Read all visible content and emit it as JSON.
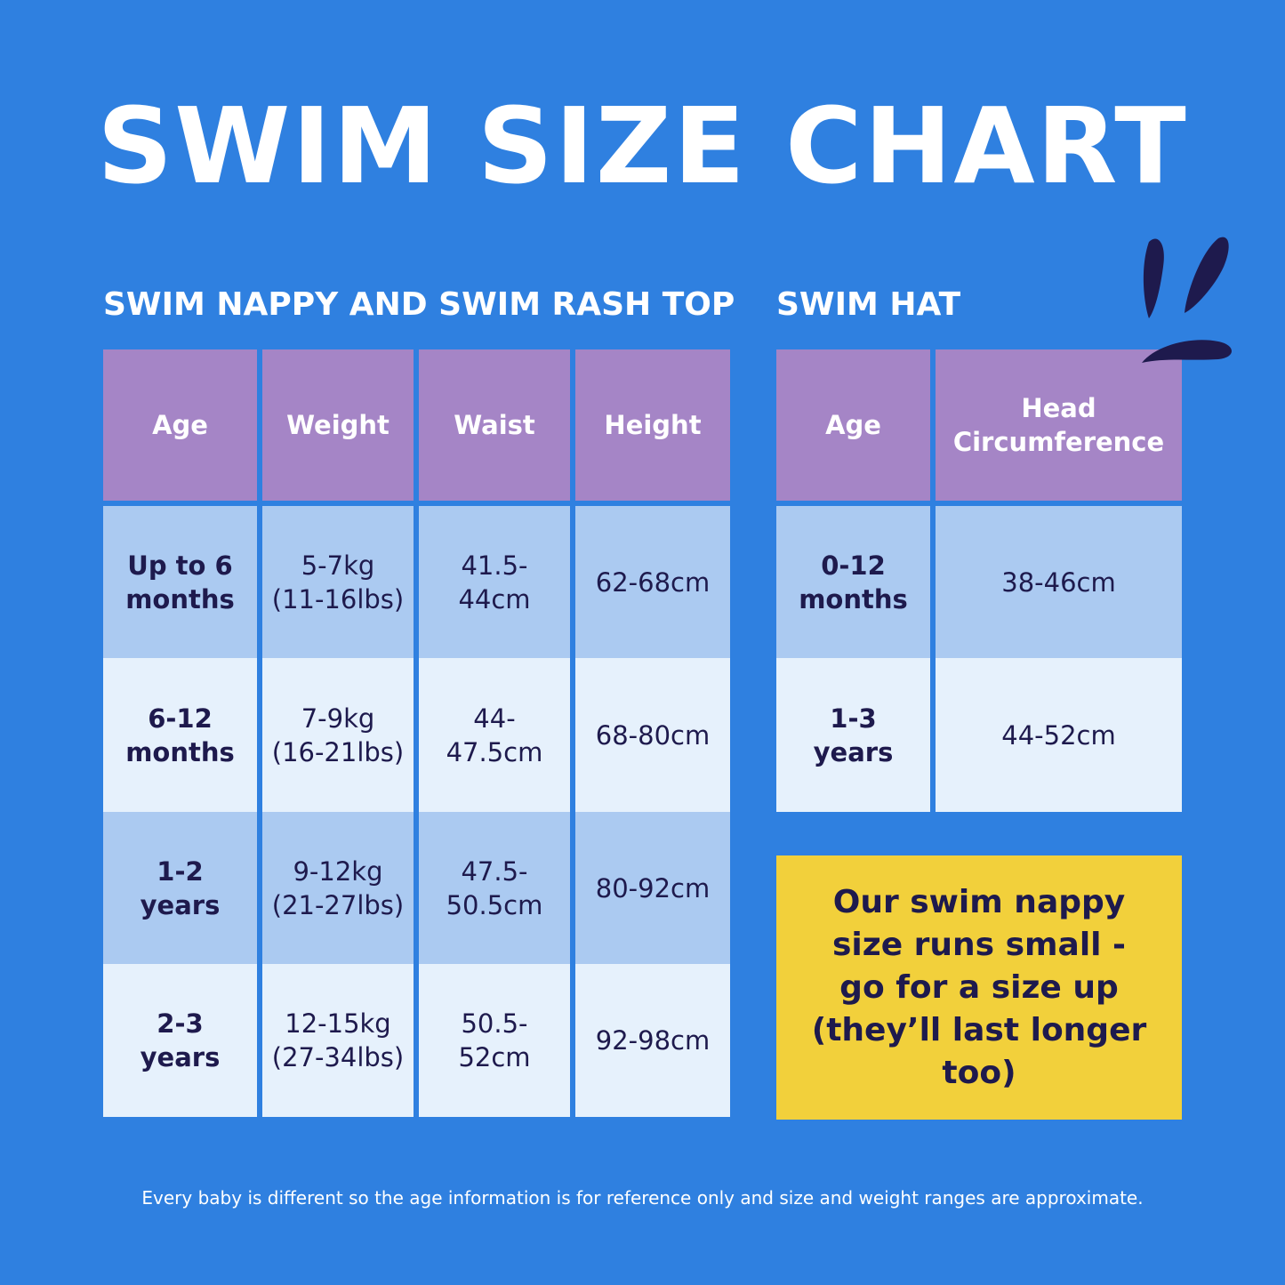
{
  "header": {
    "title": "SWIM SIZE CHART"
  },
  "tables": [
    {
      "title": "SWIM NAPPY AND SWIM RASH TOP",
      "columns": [
        "Age",
        "Weight",
        "Waist",
        "Height"
      ],
      "rows": [
        [
          "Up to 6\nmonths",
          "5-7kg\n(11-16lbs)",
          "41.5-\n44cm",
          "62-68cm"
        ],
        [
          "6-12\nmonths",
          "7-9kg\n(16-21lbs)",
          "44-\n47.5cm",
          "68-80cm"
        ],
        [
          "1-2\nyears",
          "9-12kg\n(21-27lbs)",
          "47.5-\n50.5cm",
          "80-92cm"
        ],
        [
          "2-3\nyears",
          "12-15kg\n(27-34lbs)",
          "50.5-\n52cm",
          "92-98cm"
        ]
      ]
    },
    {
      "title": "SWIM HAT",
      "columns": [
        "Age",
        "Head\nCircumference"
      ],
      "rows": [
        [
          "0-12\nmonths",
          "38-46cm"
        ],
        [
          "1-3\nyears",
          "44-52cm"
        ]
      ]
    }
  ],
  "note": "Our swim nappy\nsize runs small -\ngo for a size up\n(they’ll last longer\ntoo)",
  "footer": "Every baby is different so the age information is for reference only and size and weight ranges are approximate."
}
